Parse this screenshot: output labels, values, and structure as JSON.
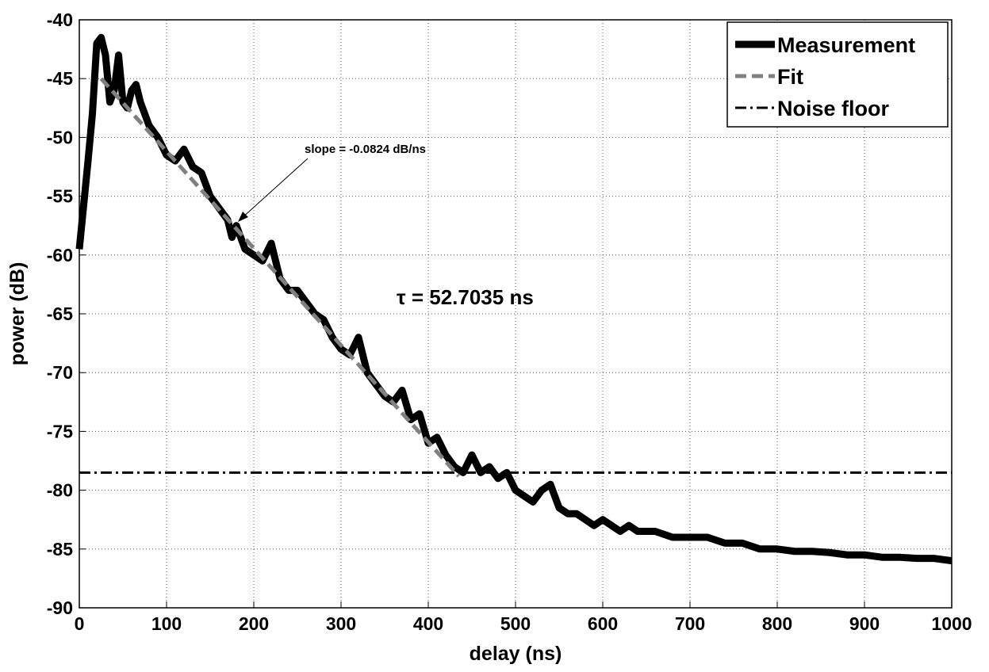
{
  "chart_data": {
    "type": "line",
    "xlabel": "delay (ns)",
    "ylabel": "power (dB)",
    "xlim": [
      0,
      1000
    ],
    "ylim": [
      -90,
      -40
    ],
    "xticks": [
      0,
      100,
      200,
      300,
      400,
      500,
      600,
      700,
      800,
      900,
      1000
    ],
    "yticks": [
      -40,
      -45,
      -50,
      -55,
      -60,
      -65,
      -70,
      -75,
      -80,
      -85,
      -90
    ],
    "grid": true,
    "legend": "upper right",
    "annotations": [
      "slope = -0.0824 dB/ns",
      "τ = 52.7035 ns"
    ],
    "series": [
      {
        "name": "Measurement",
        "color": "#000000",
        "style": "solid",
        "x": [
          0,
          10,
          15,
          20,
          25,
          30,
          35,
          40,
          45,
          50,
          55,
          60,
          65,
          70,
          75,
          80,
          90,
          100,
          110,
          120,
          130,
          140,
          150,
          160,
          170,
          175,
          180,
          190,
          200,
          210,
          220,
          230,
          240,
          250,
          260,
          270,
          280,
          290,
          300,
          310,
          320,
          330,
          340,
          350,
          360,
          370,
          380,
          390,
          400,
          410,
          420,
          430,
          440,
          450,
          460,
          470,
          480,
          490,
          500,
          510,
          520,
          530,
          540,
          550,
          560,
          570,
          580,
          590,
          600,
          610,
          620,
          630,
          640,
          660,
          680,
          700,
          720,
          740,
          760,
          780,
          800,
          820,
          840,
          860,
          880,
          900,
          920,
          940,
          960,
          980,
          1000
        ],
        "values": [
          -59.5,
          -52,
          -48,
          -42,
          -41.5,
          -43,
          -47,
          -46,
          -43,
          -47,
          -47.5,
          -46,
          -45.5,
          -47,
          -48,
          -49,
          -50,
          -51.5,
          -52,
          -51,
          -52.5,
          -53,
          -55,
          -56,
          -57,
          -58.5,
          -57.5,
          -59.5,
          -60,
          -60.5,
          -59,
          -62,
          -63,
          -63,
          -64,
          -65,
          -65.5,
          -67,
          -68,
          -68.5,
          -67,
          -70,
          -71,
          -72,
          -72.5,
          -71.5,
          -74,
          -73.5,
          -76,
          -75.5,
          -77,
          -78,
          -78.5,
          -77,
          -78.5,
          -78,
          -79,
          -78.5,
          -80,
          -80.5,
          -81,
          -80,
          -79.5,
          -81.5,
          -82,
          -82,
          -82.5,
          -83,
          -82.5,
          -83,
          -83.5,
          -83,
          -83.5,
          -83.5,
          -84,
          -84,
          -84,
          -84.5,
          -84.5,
          -85,
          -85,
          -85.2,
          -85.2,
          -85.3,
          -85.5,
          -85.5,
          -85.7,
          -85.7,
          -85.8,
          -85.8,
          -86
        ]
      },
      {
        "name": "Fit",
        "color": "#808080",
        "style": "dashed",
        "x": [
          25,
          435
        ],
        "values": [
          -45,
          -78.8
        ]
      },
      {
        "name": "Noise floor",
        "color": "#000000",
        "style": "dashdot",
        "x": [
          0,
          1000
        ],
        "values": [
          -78.5,
          -78.5
        ]
      }
    ]
  }
}
